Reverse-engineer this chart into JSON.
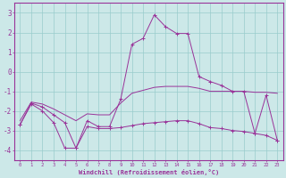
{
  "xlabel": "Windchill (Refroidissement éolien,°C)",
  "background_color": "#cce8e8",
  "grid_color": "#99cccc",
  "line_color": "#993399",
  "xlim": [
    -0.5,
    23.5
  ],
  "ylim": [
    -4.5,
    3.5
  ],
  "yticks": [
    -4,
    -3,
    -2,
    -1,
    0,
    1,
    2,
    3
  ],
  "xticks": [
    0,
    1,
    2,
    3,
    4,
    5,
    6,
    7,
    8,
    9,
    10,
    11,
    12,
    13,
    14,
    15,
    16,
    17,
    18,
    19,
    20,
    21,
    22,
    23
  ],
  "series": [
    {
      "y": [
        -2.7,
        -1.6,
        -1.8,
        -2.2,
        -2.6,
        -3.9,
        -2.5,
        -2.8,
        -2.8,
        -1.4,
        1.4,
        1.7,
        2.9,
        2.3,
        1.95,
        1.95,
        -0.25,
        -0.5,
        -0.7,
        -1.0,
        -1.0,
        -3.15,
        -1.2,
        -3.5
      ],
      "marker": true
    },
    {
      "y": [
        -2.5,
        -1.55,
        -1.65,
        -1.9,
        -2.2,
        -2.5,
        -2.15,
        -2.2,
        -2.2,
        -1.6,
        -1.1,
        -0.95,
        -0.8,
        -0.75,
        -0.75,
        -0.75,
        -0.85,
        -1.0,
        -1.0,
        -1.0,
        -1.0,
        -1.05,
        -1.05,
        -1.1
      ],
      "marker": false
    },
    {
      "y": [
        -2.7,
        -1.65,
        -2.0,
        -2.6,
        -3.9,
        -3.9,
        -2.8,
        -2.9,
        -2.9,
        -2.85,
        -2.75,
        -2.65,
        -2.6,
        -2.55,
        -2.5,
        -2.5,
        -2.65,
        -2.85,
        -2.9,
        -3.0,
        -3.05,
        -3.15,
        -3.25,
        -3.5
      ],
      "marker": true
    }
  ]
}
